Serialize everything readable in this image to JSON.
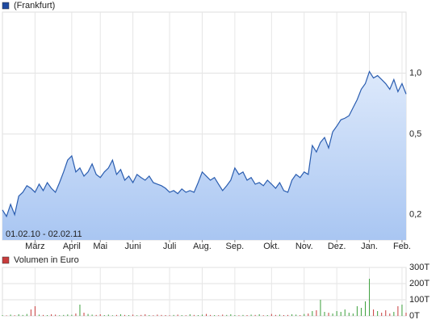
{
  "chart_data": [
    {
      "type": "area",
      "legend": "(Frankfurt)",
      "color": "#2a5db0",
      "legend_color": "#1f4aa0",
      "annotation": "01.02.10 - 02.02.11",
      "categories": [
        null,
        null,
        null,
        null,
        null,
        null,
        null,
        null,
        "März",
        null,
        null,
        null,
        null,
        null,
        null,
        null,
        null,
        "April",
        null,
        null,
        null,
        null,
        null,
        null,
        "Mai",
        null,
        null,
        null,
        null,
        null,
        null,
        null,
        "Juni",
        null,
        null,
        null,
        null,
        null,
        null,
        null,
        null,
        "Juli",
        null,
        null,
        null,
        null,
        null,
        null,
        null,
        "Aug.",
        null,
        null,
        null,
        null,
        null,
        null,
        null,
        "Sep.",
        null,
        null,
        null,
        null,
        null,
        null,
        null,
        null,
        "Okt.",
        null,
        null,
        null,
        null,
        null,
        null,
        null,
        "Nov.",
        null,
        null,
        null,
        null,
        null,
        null,
        null,
        "Dez.",
        null,
        null,
        null,
        null,
        null,
        null,
        null,
        "Jan.",
        null,
        null,
        null,
        null,
        null,
        null,
        null,
        "Feb.",
        null
      ],
      "values": [
        0.211,
        0.196,
        0.225,
        0.2,
        0.247,
        0.258,
        0.278,
        0.27,
        0.258,
        0.283,
        0.263,
        0.288,
        0.27,
        0.258,
        0.288,
        0.325,
        0.372,
        0.39,
        0.325,
        0.34,
        0.31,
        0.325,
        0.356,
        0.316,
        0.305,
        0.325,
        0.34,
        0.372,
        0.316,
        0.334,
        0.296,
        0.31,
        0.288,
        0.316,
        0.305,
        0.296,
        0.31,
        0.288,
        0.283,
        0.278,
        0.27,
        0.258,
        0.263,
        0.254,
        0.268,
        0.258,
        0.263,
        0.258,
        0.288,
        0.325,
        0.31,
        0.296,
        0.305,
        0.283,
        0.263,
        0.278,
        0.296,
        0.34,
        0.316,
        0.325,
        0.296,
        0.305,
        0.283,
        0.288,
        0.278,
        0.296,
        0.283,
        0.27,
        0.288,
        0.263,
        0.258,
        0.296,
        0.316,
        0.305,
        0.325,
        0.316,
        0.439,
        0.408,
        0.455,
        0.481,
        0.427,
        0.513,
        0.547,
        0.588,
        0.599,
        0.616,
        0.675,
        0.739,
        0.832,
        0.887,
        1.018,
        0.946,
        0.972,
        0.929,
        0.887,
        0.832,
        0.929,
        0.81,
        0.887,
        0.788
      ],
      "log_scale": true,
      "grid": true,
      "ylim": [
        0.15,
        2.0
      ],
      "yticks": [
        {
          "value": 0.2,
          "label": "0,2"
        },
        {
          "value": 0.5,
          "label": "0,5"
        },
        {
          "value": 1.0,
          "label": "1,0"
        }
      ]
    },
    {
      "type": "bar",
      "legend": "Volumen in Euro",
      "legend_color": "#c83c3c",
      "up_color": "#3ca03c",
      "down_color": "#c83c3c",
      "values": [
        5,
        3,
        8,
        4,
        10,
        6,
        12,
        40,
        60,
        8,
        6,
        5,
        10,
        8,
        4,
        6,
        9,
        7,
        15,
        70,
        20,
        12,
        8,
        6,
        10,
        5,
        8,
        4,
        6,
        10,
        6,
        5,
        8,
        4,
        6,
        10,
        5,
        4,
        8,
        6,
        5,
        4,
        6,
        8,
        5,
        4,
        10,
        6,
        5,
        8,
        12,
        6,
        5,
        4,
        8,
        6,
        10,
        5,
        4,
        6,
        5,
        8,
        6,
        10,
        4,
        5,
        12,
        6,
        8,
        5,
        6,
        10,
        8,
        5,
        12,
        15,
        30,
        35,
        100,
        25,
        20,
        15,
        30,
        25,
        40,
        20,
        15,
        60,
        50,
        90,
        230,
        40,
        30,
        20,
        35,
        15,
        25,
        60,
        70,
        20
      ],
      "grid": true,
      "ylim": [
        0,
        300
      ],
      "yticks": [
        {
          "value": 0,
          "label": "0T"
        },
        {
          "value": 100,
          "label": "100T"
        },
        {
          "value": 200,
          "label": "200T"
        },
        {
          "value": 300,
          "label": "300T"
        }
      ]
    }
  ]
}
